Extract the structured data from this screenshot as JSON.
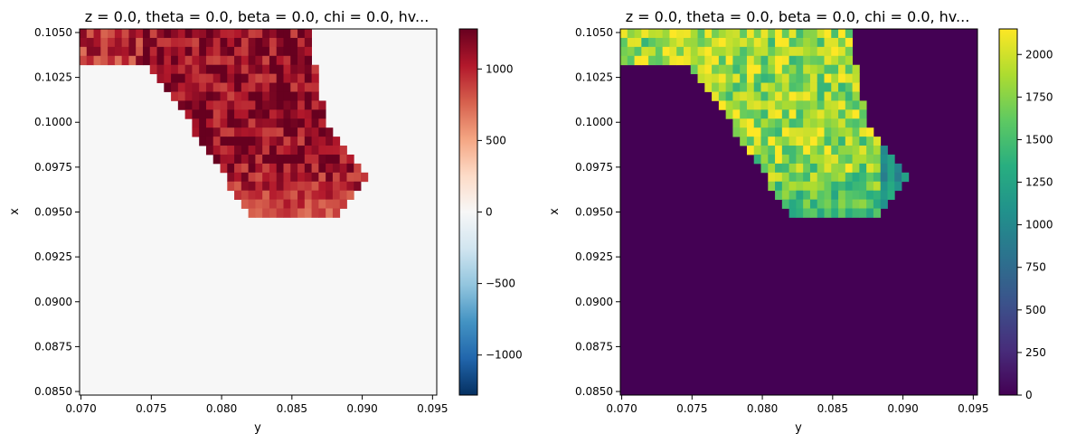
{
  "chart_data": [
    {
      "type": "heatmap",
      "title": "z = 0.0, theta = 0.0, beta = 0.0, chi = 0.0, hv...",
      "xlabel": "y",
      "ylabel": "x",
      "xlim": [
        0.0699,
        0.0953
      ],
      "ylim": [
        0.0848,
        0.1052
      ],
      "xticks": [
        "0.070",
        "0.075",
        "0.080",
        "0.085",
        "0.090",
        "0.095"
      ],
      "yticks": [
        "0.0850",
        "0.0875",
        "0.0900",
        "0.0925",
        "0.0950",
        "0.0975",
        "0.1000",
        "0.1025",
        "0.1050"
      ],
      "colormap": "RdBu_r",
      "clim": [
        -1280,
        1280
      ],
      "colorbar_ticks": [
        "−1000",
        "−500",
        "0",
        "500",
        "1000"
      ],
      "background_value": 0,
      "region": "masked wedge: full width 0.0699–0.0742 for x ≥ 0.1030, diagonal band widening toward y ≈ 0.0904, bottom edge near x ≈ 0.0948; values mostly 600–1250, lower near bottom-left edge"
    },
    {
      "type": "heatmap",
      "title": "z = 0.0, theta = 0.0, beta = 0.0, chi = 0.0, hv...",
      "xlabel": "y",
      "ylabel": "x",
      "xlim": [
        0.0699,
        0.0953
      ],
      "ylim": [
        0.0848,
        0.1052
      ],
      "xticks": [
        "0.070",
        "0.075",
        "0.080",
        "0.085",
        "0.090",
        "0.095"
      ],
      "yticks": [
        "0.0850",
        "0.0875",
        "0.0900",
        "0.0925",
        "0.0950",
        "0.0975",
        "0.1000",
        "0.1025",
        "0.1050"
      ],
      "colormap": "viridis",
      "clim": [
        0,
        2150
      ],
      "colorbar_ticks": [
        "0",
        "250",
        "500",
        "750",
        "1000",
        "1250",
        "1500",
        "1750",
        "2000"
      ],
      "background_value": 0,
      "region": "same masked wedge; values mostly 1300–2100, lower (≈900–1200) near bottom-left and right edges"
    }
  ]
}
